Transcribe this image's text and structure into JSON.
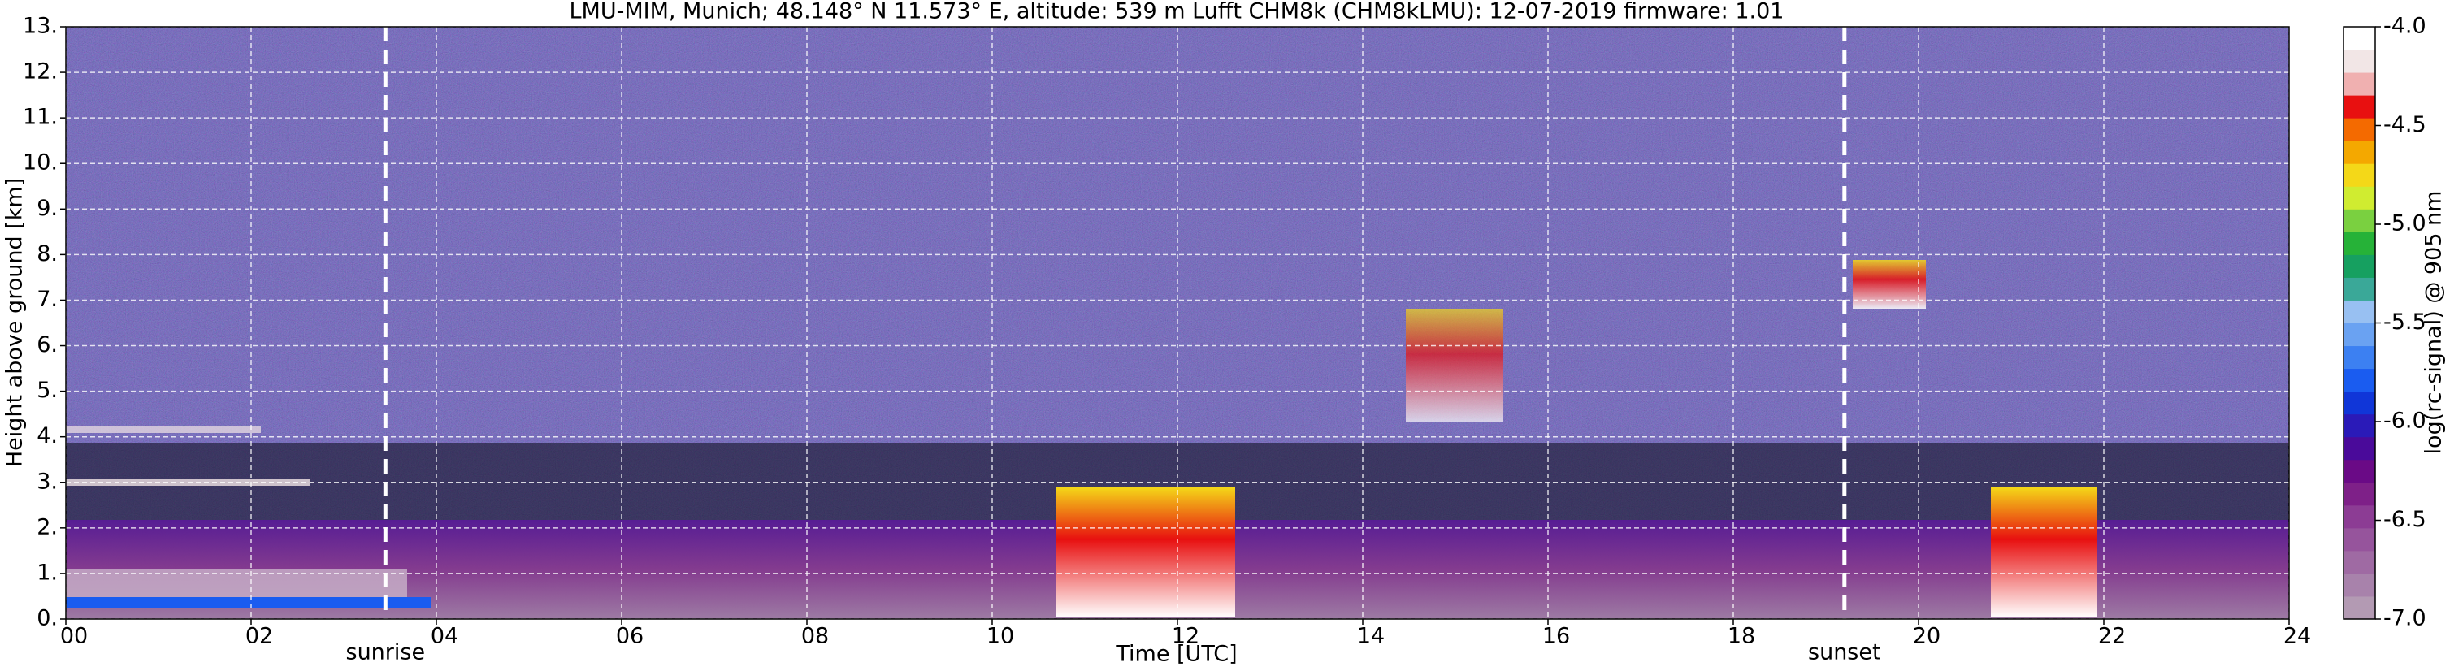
{
  "chart_data": {
    "type": "heatmap",
    "title": "LMU-MIM, Munich; 48.148° N 11.573° E, altitude: 539 m    Lufft CHM8k (CHM8kLMU): 12-07-2019    firmware: 1.01",
    "xlabel": "Time [UTC]",
    "ylabel": "Height above ground [km]",
    "colorbar_label": "log(rc-signal) @ 905 nm",
    "xlim": [
      0,
      24
    ],
    "ylim": [
      0,
      13
    ],
    "xticks": [
      {
        "value": 0,
        "label": "00"
      },
      {
        "value": 2,
        "label": "02"
      },
      {
        "value": 4,
        "label": "04"
      },
      {
        "value": 6,
        "label": "06"
      },
      {
        "value": 8,
        "label": "08"
      },
      {
        "value": 10,
        "label": "10"
      },
      {
        "value": 12,
        "label": "12"
      },
      {
        "value": 14,
        "label": "14"
      },
      {
        "value": 16,
        "label": "16"
      },
      {
        "value": 18,
        "label": "18"
      },
      {
        "value": 20,
        "label": "20"
      },
      {
        "value": 22,
        "label": "22"
      },
      {
        "value": 24,
        "label": "24"
      }
    ],
    "yticks": [
      {
        "value": 0,
        "label": "0."
      },
      {
        "value": 1,
        "label": "1."
      },
      {
        "value": 2,
        "label": "2."
      },
      {
        "value": 3,
        "label": "3."
      },
      {
        "value": 4,
        "label": "4."
      },
      {
        "value": 5,
        "label": "5."
      },
      {
        "value": 6,
        "label": "6."
      },
      {
        "value": 7,
        "label": "7."
      },
      {
        "value": 8,
        "label": "8."
      },
      {
        "value": 9,
        "label": "9."
      },
      {
        "value": 10,
        "label": "10."
      },
      {
        "value": 11,
        "label": "11."
      },
      {
        "value": 12,
        "label": "12."
      },
      {
        "value": 13,
        "label": "13."
      }
    ],
    "clim": [
      -7,
      -4
    ],
    "cticks": [
      {
        "value": -4,
        "label": "-4.0"
      },
      {
        "value": -4.5,
        "label": "-4.5"
      },
      {
        "value": -5,
        "label": "-5.0"
      },
      {
        "value": -5.5,
        "label": "-5.5"
      },
      {
        "value": -6,
        "label": "-6.0"
      },
      {
        "value": -6.5,
        "label": "-6.5"
      },
      {
        "value": -7,
        "label": "-7.0"
      }
    ],
    "colorbar_colors": [
      "#b39ab3",
      "#a882ab",
      "#9f6aa3",
      "#96549c",
      "#8c3c94",
      "#7e2088",
      "#6a0a86",
      "#4a0a9a",
      "#2a1ab8",
      "#1036d8",
      "#1a5cf0",
      "#3c80f2",
      "#6aa2f2",
      "#98c0f2",
      "#3aa898",
      "#16a060",
      "#26b238",
      "#7ad040",
      "#d0ec30",
      "#f4d818",
      "#f4a800",
      "#f46a00",
      "#e81010",
      "#f0b0b0",
      "#f2e6e6",
      "#ffffff"
    ],
    "grid": true,
    "annotations": [
      {
        "text": "sunrise",
        "x": 3.45
      },
      {
        "text": "sunset",
        "x": 19.2
      }
    ]
  }
}
